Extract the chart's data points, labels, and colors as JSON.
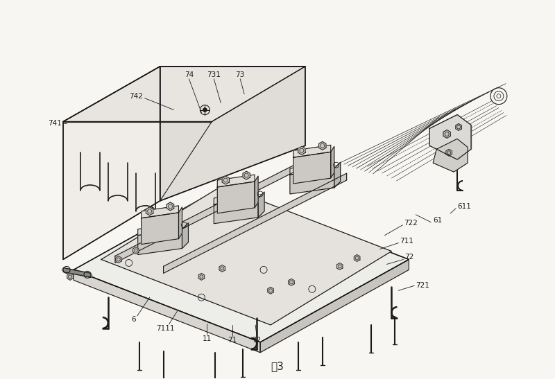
{
  "title": "图3",
  "bg_color": "#f8f6f2",
  "line_color": "#1a1a1a",
  "fig_width": 8.0,
  "fig_height": 5.47,
  "dpi": 100
}
